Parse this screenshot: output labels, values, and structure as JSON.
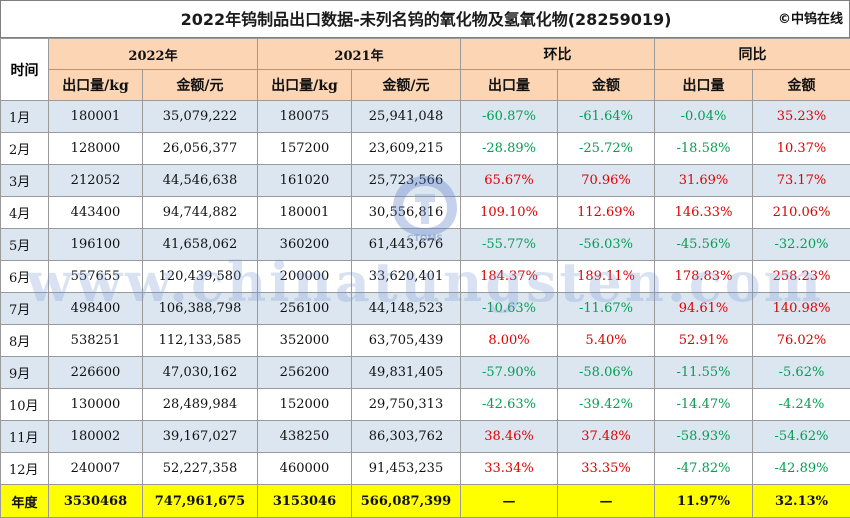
{
  "title": "2022年钨制品出口数据-未列名钨的氧化物及氢氧化物(28259019)",
  "brand": "©中钨在线",
  "headers": {
    "time": "时间",
    "y2022": "2022年",
    "y2021": "2021年",
    "mom": "环比",
    "yoy": "同比",
    "qty": "出口量/kg",
    "amt": "金额/元",
    "qty_short": "出口量",
    "amt_short": "金额"
  },
  "rows": [
    {
      "month": "1月",
      "q22": "180001",
      "a22": "35,079,222",
      "q21": "180075",
      "a21": "25,941,048",
      "mq": "-60.87%",
      "ma": "-61.64%",
      "yq": "-0.04%",
      "ya": "35.23%"
    },
    {
      "month": "2月",
      "q22": "128000",
      "a22": "26,056,377",
      "q21": "157200",
      "a21": "23,609,215",
      "mq": "-28.89%",
      "ma": "-25.72%",
      "yq": "-18.58%",
      "ya": "10.37%"
    },
    {
      "month": "3月",
      "q22": "212052",
      "a22": "44,546,638",
      "q21": "161020",
      "a21": "25,723,566",
      "mq": "65.67%",
      "ma": "70.96%",
      "yq": "31.69%",
      "ya": "73.17%"
    },
    {
      "month": "4月",
      "q22": "443400",
      "a22": "94,744,882",
      "q21": "180001",
      "a21": "30,556,816",
      "mq": "109.10%",
      "ma": "112.69%",
      "yq": "146.33%",
      "ya": "210.06%"
    },
    {
      "month": "5月",
      "q22": "196100",
      "a22": "41,658,062",
      "q21": "360200",
      "a21": "61,443,676",
      "mq": "-55.77%",
      "ma": "-56.03%",
      "yq": "-45.56%",
      "ya": "-32.20%"
    },
    {
      "month": "6月",
      "q22": "557655",
      "a22": "120,439,580",
      "q21": "200000",
      "a21": "33,620,401",
      "mq": "184.37%",
      "ma": "189.11%",
      "yq": "178.83%",
      "ya": "258.23%"
    },
    {
      "month": "7月",
      "q22": "498400",
      "a22": "106,388,798",
      "q21": "256100",
      "a21": "44,148,523",
      "mq": "-10.63%",
      "ma": "-11.67%",
      "yq": "94.61%",
      "ya": "140.98%"
    },
    {
      "month": "8月",
      "q22": "538251",
      "a22": "112,133,585",
      "q21": "352000",
      "a21": "63,705,439",
      "mq": "8.00%",
      "ma": "5.40%",
      "yq": "52.91%",
      "ya": "76.02%"
    },
    {
      "month": "9月",
      "q22": "226600",
      "a22": "47,030,162",
      "q21": "256200",
      "a21": "49,831,405",
      "mq": "-57.90%",
      "ma": "-58.06%",
      "yq": "-11.55%",
      "ya": "-5.62%"
    },
    {
      "month": "10月",
      "q22": "130000",
      "a22": "28,489,984",
      "q21": "152000",
      "a21": "29,750,313",
      "mq": "-42.63%",
      "ma": "-39.42%",
      "yq": "-14.47%",
      "ya": "-4.24%"
    },
    {
      "month": "11月",
      "q22": "180002",
      "a22": "39,167,027",
      "q21": "438250",
      "a21": "86,303,762",
      "mq": "38.46%",
      "ma": "37.48%",
      "yq": "-58.93%",
      "ya": "-54.62%"
    },
    {
      "month": "12月",
      "q22": "240007",
      "a22": "52,227,358",
      "q21": "460000",
      "a21": "91,453,235",
      "mq": "33.34%",
      "ma": "33.35%",
      "yq": "-47.82%",
      "ya": "-42.89%"
    }
  ],
  "total": {
    "label": "年度",
    "q22": "3530468",
    "a22": "747,961,675",
    "q21": "3153046",
    "a21": "566,087,399",
    "mq": "—",
    "ma": "—",
    "yq": "11.97%",
    "ya": "32.13%"
  },
  "watermark": "www.chinatungsten.com",
  "logo_text": "CTOMS",
  "colors": {
    "header_bg": "#fcd5b4",
    "alt_row": "#dce6f1",
    "total_bg": "#ffff00",
    "positive": "#e00000",
    "negative": "#00a050"
  }
}
